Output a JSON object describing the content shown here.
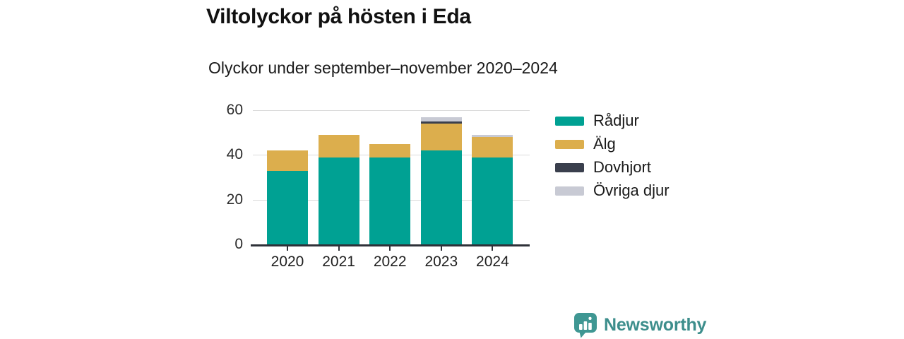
{
  "title": "Viltolyckor på hösten i Eda",
  "subtitle": "Olyckor under september–november 2020–2024",
  "footer": {
    "brand": "Newsworthy",
    "brand_color": "#3d8e8c",
    "logo_icon": "speech-bubble-bar-chart-icon"
  },
  "colors": {
    "background": "#ffffff",
    "title_text": "#111111",
    "axis": "#2e3138",
    "gridline": "#dbdbdb",
    "radjur": "#00a193",
    "alg": "#dcae4d",
    "dovhjort": "#3a3f4d",
    "ovriga_djur": "#c8cad4"
  },
  "chart_data": {
    "type": "bar",
    "stacked": true,
    "title": "Viltolyckor på hösten i Eda",
    "subtitle": "Olyckor under september–november 2020–2024",
    "categories": [
      "2020",
      "2021",
      "2022",
      "2023",
      "2024"
    ],
    "series": [
      {
        "name": "Rådjur",
        "color": "#00a193",
        "values": [
          33,
          39,
          39,
          42,
          39
        ]
      },
      {
        "name": "Älg",
        "color": "#dcae4d",
        "values": [
          9,
          10,
          6,
          12,
          9
        ]
      },
      {
        "name": "Dovhjort",
        "color": "#3a3f4d",
        "values": [
          0,
          0,
          0,
          1,
          0
        ]
      },
      {
        "name": "Övriga djur",
        "color": "#c8cad4",
        "values": [
          0,
          0,
          0,
          2,
          1
        ]
      }
    ],
    "totals": [
      42,
      49,
      45,
      57,
      49
    ],
    "xlabel": "",
    "ylabel": "",
    "yticks": [
      0,
      20,
      40,
      60
    ],
    "ylim": [
      0,
      60
    ],
    "grid": true,
    "legend_position": "right"
  }
}
